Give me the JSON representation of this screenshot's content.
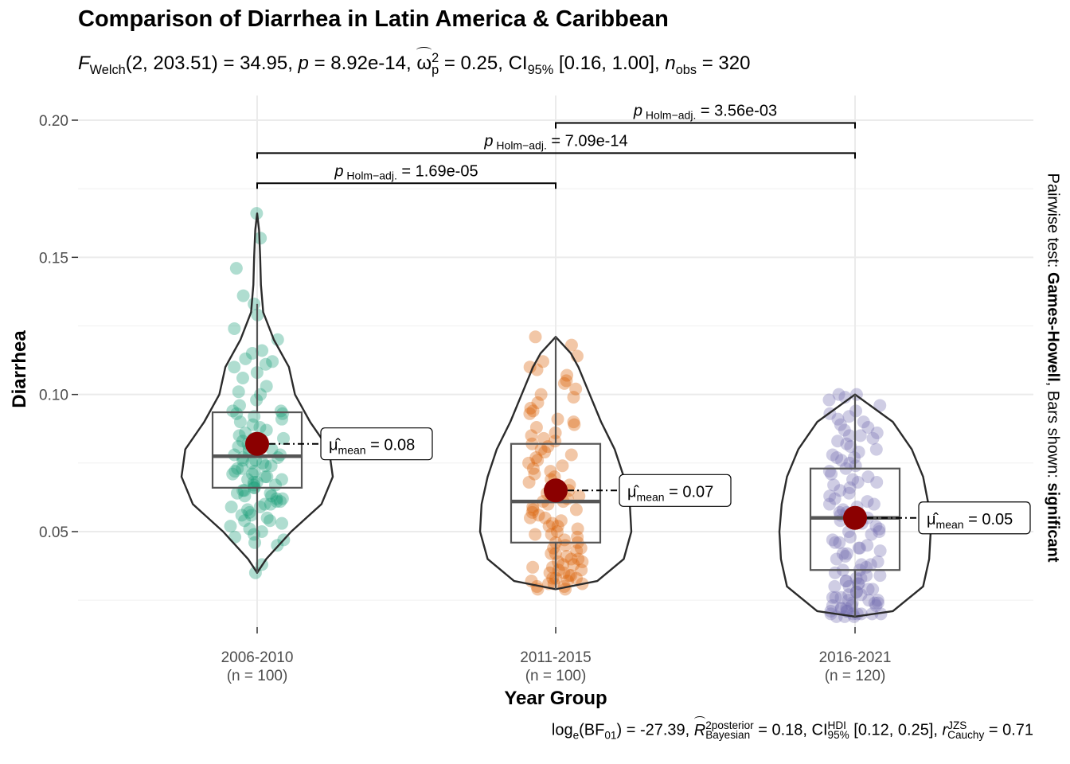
{
  "title": "Comparison of Diarrhea in Latin America & Caribbean",
  "subtitle": {
    "f": "F",
    "f_sub": "Welch",
    "df": "(2, 203.51) = 34.95,",
    "p_label": "p",
    "p_value": "= 8.92e-14,",
    "effect_symbol": "ω",
    "effect_sup": "2",
    "effect_sub": "p",
    "effect_value": "= 0.25, CI",
    "ci_sub": "95%",
    "ci_value": "[0.16, 1.00],",
    "n_label": "n",
    "n_sub": "obs",
    "n_value": "= 320"
  },
  "caption": {
    "log": "log",
    "log_sub": "e",
    "bf_open": "(BF",
    "bf_sub": "01",
    "bf_value": ") = -27.39,",
    "r": "R",
    "r_sup": "2",
    "r_sup2": "posterior",
    "r_sub": "Bayesian",
    "r_value": "= 0.18, CI",
    "ci_sup": "HDI",
    "ci_sub": "95%",
    "ci_value": "[0.12, 0.25],",
    "rc": "r",
    "rc_sup": "JZS",
    "rc_sub": "Cauchy",
    "rc_value": "= 0.71"
  },
  "right_note": {
    "prefix": "Pairwise test: ",
    "test": "Games-Howell",
    "middle": ", Bars shown: ",
    "shown": "significant"
  },
  "colors": {
    "group1": "#1B9E77",
    "group2": "#D95F02",
    "group3": "#7570B3",
    "mean_point": "#8B0000",
    "grid": "#EBEBEB"
  },
  "chart_data": {
    "type": "violin-box-scatter",
    "xlabel": "Year Group",
    "ylabel": "Diarrhea",
    "ylim": [
      0.01,
      0.205
    ],
    "yticks": [
      0.05,
      0.1,
      0.15,
      0.2
    ],
    "ytick_labels": [
      "0.05",
      "0.10",
      "0.15",
      "0.20"
    ],
    "grid": true,
    "groups": [
      {
        "name": "2006-2010",
        "n_label": "(n = 100)",
        "color": "#1B9E77",
        "min": 0.035,
        "q1": 0.066,
        "median": 0.0775,
        "q3": 0.0935,
        "whisker_high": 0.133,
        "max": 0.166,
        "mean": 0.082,
        "mean_label_sub": "mean",
        "mean_label_value": "= 0.08",
        "violin": [
          [
            0.035,
            0.0
          ],
          [
            0.04,
            0.12
          ],
          [
            0.05,
            0.45
          ],
          [
            0.06,
            0.85
          ],
          [
            0.07,
            1.0
          ],
          [
            0.08,
            0.95
          ],
          [
            0.09,
            0.7
          ],
          [
            0.1,
            0.5
          ],
          [
            0.11,
            0.42
          ],
          [
            0.12,
            0.22
          ],
          [
            0.13,
            0.08
          ],
          [
            0.14,
            0.05
          ],
          [
            0.15,
            0.04
          ],
          [
            0.16,
            0.025
          ],
          [
            0.166,
            0.0
          ]
        ],
        "points": [
          0.166,
          0.157,
          0.146,
          0.136,
          0.133,
          0.129,
          0.124,
          0.12,
          0.116,
          0.115,
          0.113,
          0.112,
          0.111,
          0.11,
          0.108,
          0.106,
          0.103,
          0.101,
          0.1,
          0.098,
          0.096,
          0.094,
          0.094,
          0.093,
          0.093,
          0.092,
          0.091,
          0.09,
          0.089,
          0.088,
          0.087,
          0.086,
          0.085,
          0.084,
          0.084,
          0.083,
          0.083,
          0.082,
          0.081,
          0.08,
          0.08,
          0.079,
          0.078,
          0.078,
          0.077,
          0.077,
          0.076,
          0.076,
          0.075,
          0.075,
          0.074,
          0.074,
          0.073,
          0.073,
          0.072,
          0.072,
          0.071,
          0.071,
          0.07,
          0.07,
          0.069,
          0.069,
          0.068,
          0.068,
          0.067,
          0.067,
          0.066,
          0.066,
          0.065,
          0.065,
          0.064,
          0.064,
          0.063,
          0.063,
          0.062,
          0.062,
          0.061,
          0.061,
          0.06,
          0.06,
          0.059,
          0.059,
          0.058,
          0.057,
          0.056,
          0.056,
          0.055,
          0.054,
          0.054,
          0.053,
          0.052,
          0.051,
          0.05,
          0.049,
          0.048,
          0.047,
          0.046,
          0.045,
          0.038,
          0.035
        ]
      },
      {
        "name": "2011-2015",
        "n_label": "(n = 100)",
        "color": "#D95F02",
        "min": 0.029,
        "q1": 0.046,
        "median": 0.061,
        "q3": 0.082,
        "whisker_high": 0.121,
        "max": 0.121,
        "mean": 0.065,
        "mean_label_sub": "mean",
        "mean_label_value": "= 0.07",
        "violin": [
          [
            0.029,
            0.0
          ],
          [
            0.032,
            0.55
          ],
          [
            0.04,
            0.9
          ],
          [
            0.05,
            1.0
          ],
          [
            0.06,
            0.98
          ],
          [
            0.07,
            0.9
          ],
          [
            0.08,
            0.78
          ],
          [
            0.09,
            0.6
          ],
          [
            0.1,
            0.45
          ],
          [
            0.11,
            0.3
          ],
          [
            0.115,
            0.2
          ],
          [
            0.121,
            0.0
          ]
        ],
        "points": [
          0.121,
          0.118,
          0.114,
          0.112,
          0.11,
          0.109,
          0.107,
          0.105,
          0.104,
          0.102,
          0.1,
          0.099,
          0.097,
          0.095,
          0.094,
          0.093,
          0.091,
          0.09,
          0.089,
          0.088,
          0.086,
          0.085,
          0.084,
          0.083,
          0.082,
          0.081,
          0.08,
          0.079,
          0.078,
          0.077,
          0.076,
          0.075,
          0.074,
          0.073,
          0.072,
          0.071,
          0.07,
          0.069,
          0.068,
          0.067,
          0.066,
          0.065,
          0.064,
          0.063,
          0.062,
          0.061,
          0.061,
          0.06,
          0.059,
          0.058,
          0.058,
          0.057,
          0.056,
          0.055,
          0.055,
          0.054,
          0.053,
          0.052,
          0.052,
          0.051,
          0.05,
          0.049,
          0.049,
          0.048,
          0.047,
          0.046,
          0.046,
          0.045,
          0.044,
          0.044,
          0.043,
          0.042,
          0.042,
          0.041,
          0.04,
          0.04,
          0.039,
          0.039,
          0.038,
          0.038,
          0.037,
          0.037,
          0.036,
          0.036,
          0.035,
          0.035,
          0.034,
          0.034,
          0.033,
          0.033,
          0.033,
          0.032,
          0.032,
          0.031,
          0.031,
          0.031,
          0.03,
          0.03,
          0.029,
          0.029
        ]
      },
      {
        "name": "2016-2021",
        "n_label": "(n = 120)",
        "color": "#7570B3",
        "min": 0.019,
        "q1": 0.036,
        "median": 0.055,
        "q3": 0.073,
        "whisker_high": 0.1,
        "max": 0.1,
        "mean": 0.055,
        "mean_label_sub": "mean",
        "mean_label_value": "= 0.05",
        "violin": [
          [
            0.019,
            0.0
          ],
          [
            0.021,
            0.5
          ],
          [
            0.03,
            0.9
          ],
          [
            0.04,
            0.98
          ],
          [
            0.05,
            1.0
          ],
          [
            0.06,
            0.97
          ],
          [
            0.07,
            0.9
          ],
          [
            0.08,
            0.75
          ],
          [
            0.09,
            0.5
          ],
          [
            0.1,
            0.0
          ]
        ],
        "points": [
          0.1,
          0.1,
          0.099,
          0.098,
          0.096,
          0.094,
          0.093,
          0.092,
          0.091,
          0.09,
          0.089,
          0.088,
          0.087,
          0.086,
          0.085,
          0.085,
          0.084,
          0.083,
          0.082,
          0.081,
          0.08,
          0.079,
          0.078,
          0.077,
          0.077,
          0.076,
          0.075,
          0.074,
          0.073,
          0.072,
          0.071,
          0.07,
          0.069,
          0.068,
          0.068,
          0.067,
          0.066,
          0.065,
          0.064,
          0.063,
          0.062,
          0.061,
          0.06,
          0.06,
          0.059,
          0.058,
          0.057,
          0.056,
          0.055,
          0.055,
          0.054,
          0.053,
          0.052,
          0.051,
          0.05,
          0.05,
          0.049,
          0.048,
          0.047,
          0.046,
          0.046,
          0.045,
          0.044,
          0.043,
          0.042,
          0.042,
          0.041,
          0.04,
          0.039,
          0.038,
          0.038,
          0.037,
          0.036,
          0.036,
          0.035,
          0.034,
          0.034,
          0.033,
          0.032,
          0.032,
          0.031,
          0.031,
          0.03,
          0.03,
          0.029,
          0.029,
          0.028,
          0.028,
          0.027,
          0.027,
          0.026,
          0.026,
          0.025,
          0.025,
          0.025,
          0.024,
          0.024,
          0.024,
          0.023,
          0.023,
          0.023,
          0.022,
          0.022,
          0.022,
          0.021,
          0.021,
          0.021,
          0.02,
          0.02,
          0.02,
          0.02,
          0.02,
          0.02,
          0.019,
          0.019,
          0.019,
          0.026,
          0.033,
          0.044,
          0.057
        ]
      }
    ],
    "comparisons": [
      {
        "from": 0,
        "to": 1,
        "y": 0.177,
        "p_label": "p",
        "p_sub": "Holm−adj.",
        "p_value": "= 1.69e-05"
      },
      {
        "from": 0,
        "to": 2,
        "y": 0.188,
        "p_label": "p",
        "p_sub": "Holm−adj.",
        "p_value": "= 7.09e-14"
      },
      {
        "from": 1,
        "to": 2,
        "y": 0.199,
        "p_label": "p",
        "p_sub": "Holm−adj.",
        "p_value": "= 3.56e-03"
      }
    ]
  }
}
